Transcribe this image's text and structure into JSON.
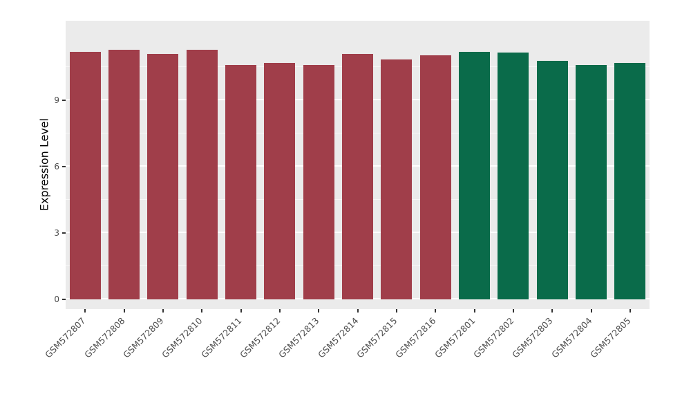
{
  "chart_data": {
    "type": "bar",
    "title": "",
    "xlabel": "",
    "ylabel": "Expression Level",
    "categories": [
      "GSM572807",
      "GSM572808",
      "GSM572809",
      "GSM572810",
      "GSM572811",
      "GSM572812",
      "GSM572813",
      "GSM572814",
      "GSM572815",
      "GSM572816",
      "GSM572801",
      "GSM572802",
      "GSM572803",
      "GSM572804",
      "GSM572805"
    ],
    "values": [
      11.2,
      11.3,
      11.1,
      11.3,
      10.6,
      10.7,
      10.6,
      11.1,
      10.85,
      11.05,
      11.2,
      11.15,
      10.8,
      10.6,
      10.7
    ],
    "bar_fill": [
      "#A03E4A",
      "#A03E4A",
      "#A03E4A",
      "#A03E4A",
      "#A03E4A",
      "#A03E4A",
      "#A03E4A",
      "#A03E4A",
      "#A03E4A",
      "#A03E4A",
      "#0A6B4A",
      "#0A6B4A",
      "#0A6B4A",
      "#0A6B4A",
      "#0A6B4A"
    ],
    "group_colors": {
      "group_a": "#A03E4A",
      "group_b": "#0A6B4A"
    },
    "yticks": [
      0,
      3,
      6,
      9
    ],
    "y_minor_ticks": [
      1.5,
      4.5,
      7.5,
      10.5
    ],
    "ylim": [
      0,
      12.6
    ],
    "grid": "on",
    "legend": "none",
    "theme": {
      "panel_background": "#EBEBEB",
      "grid_color": "#FFFFFF",
      "tick_label_color": "#4D4D4D",
      "axis_title_color": "#000000",
      "tick_mark_color": "#333333",
      "figure_background": "#FFFFFF"
    }
  }
}
